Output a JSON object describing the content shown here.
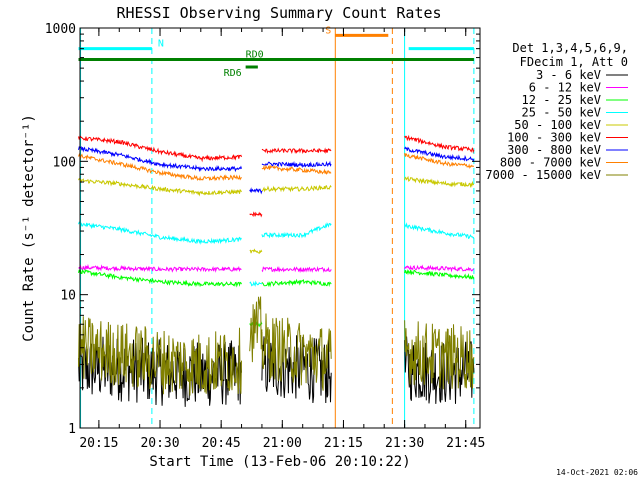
{
  "chart_data": {
    "type": "line",
    "title": "RHESSI Observing Summary Count Rates",
    "xlabel": "Start Time (13-Feb-06 20:10:22)",
    "ylabel": "Count Rate (s⁻¹ detector⁻¹)",
    "y_scale": "log",
    "ylim": [
      1,
      1000
    ],
    "xlim": [
      "20:10:22",
      "21:48:30"
    ],
    "x_ticks": [
      "20:15",
      "20:30",
      "20:45",
      "21:00",
      "21:15",
      "21:30",
      "21:45"
    ],
    "y_ticks": [
      "1",
      "10",
      "100",
      "1000"
    ],
    "footer_date": "14-Oct-2021 02:06",
    "legend": {
      "header": [
        "Det 1,3,4,5,6,9,",
        "FDecim 1, Att 0"
      ],
      "placement": "right"
    },
    "series": [
      {
        "name": "3 - 6 keV",
        "color": "#000000",
        "segments": [
          {
            "x": [
              "20:10",
              "20:20",
              "20:30",
              "20:40",
              "20:50"
            ],
            "y": [
              2.8,
              2.8,
              2.6,
              2.5,
              2.6
            ]
          },
          {
            "x": [
              "20:55",
              "21:05",
              "21:12"
            ],
            "y": [
              2.9,
              2.8,
              2.6
            ]
          },
          {
            "x": [
              "21:30",
              "21:40",
              "21:47"
            ],
            "y": [
              2.8,
              2.6,
              2.6
            ]
          }
        ]
      },
      {
        "name": "6 - 12 keV",
        "color": "#ff00ff",
        "segments": [
          {
            "x": [
              "20:10",
              "20:30",
              "20:50"
            ],
            "y": [
              16,
              15.5,
              15.5
            ]
          },
          {
            "x": [
              "20:55",
              "21:05",
              "21:12"
            ],
            "y": [
              15.5,
              15.5,
              15.5
            ]
          },
          {
            "x": [
              "21:30",
              "21:47"
            ],
            "y": [
              16,
              15.5
            ]
          }
        ]
      },
      {
        "name": "12 - 25 keV",
        "color": "#00ff00",
        "segments": [
          {
            "x": [
              "20:10",
              "20:20",
              "20:30",
              "20:40",
              "20:50"
            ],
            "y": [
              15,
              13.5,
              12.5,
              12,
              12
            ]
          },
          {
            "x": [
              "20:52",
              "20:55"
            ],
            "y": [
              6,
              6
            ]
          },
          {
            "x": [
              "20:55",
              "21:05",
              "21:12"
            ],
            "y": [
              12,
              12.5,
              12
            ]
          },
          {
            "x": [
              "21:30",
              "21:40",
              "21:47"
            ],
            "y": [
              15,
              14,
              13.5
            ]
          }
        ]
      },
      {
        "name": "25 - 50 keV",
        "color": "#00ffff",
        "segments": [
          {
            "x": [
              "20:10",
              "20:20",
              "20:30",
              "20:40",
              "20:50"
            ],
            "y": [
              34,
              31,
              27,
              25,
              26
            ]
          },
          {
            "x": [
              "20:52",
              "20:55"
            ],
            "y": [
              12,
              12
            ]
          },
          {
            "x": [
              "20:55",
              "21:05",
              "21:12"
            ],
            "y": [
              28,
              28,
              34
            ]
          },
          {
            "x": [
              "21:30",
              "21:40",
              "21:47"
            ],
            "y": [
              33,
              29,
              27
            ]
          }
        ]
      },
      {
        "name": "50 - 100 keV",
        "color": "#c8c800",
        "segments": [
          {
            "x": [
              "20:10",
              "20:20",
              "20:30",
              "20:40",
              "20:50"
            ],
            "y": [
              72,
              68,
              62,
              58,
              59
            ]
          },
          {
            "x": [
              "20:52",
              "20:55"
            ],
            "y": [
              21,
              21
            ]
          },
          {
            "x": [
              "20:55",
              "21:05",
              "21:12"
            ],
            "y": [
              62,
              62,
              64
            ]
          },
          {
            "x": [
              "21:30",
              "21:40",
              "21:47"
            ],
            "y": [
              74,
              68,
              67
            ]
          }
        ]
      },
      {
        "name": "100 - 300 keV",
        "color": "#ff0000",
        "segments": [
          {
            "x": [
              "20:10",
              "20:20",
              "20:30",
              "20:40",
              "20:50"
            ],
            "y": [
              150,
              140,
              118,
              105,
              108
            ]
          },
          {
            "x": [
              "20:52",
              "20:55"
            ],
            "y": [
              40,
              40
            ]
          },
          {
            "x": [
              "20:55",
              "21:05",
              "21:12"
            ],
            "y": [
              120,
              120,
              120
            ]
          },
          {
            "x": [
              "21:30",
              "21:40",
              "21:47"
            ],
            "y": [
              152,
              128,
              122
            ]
          }
        ]
      },
      {
        "name": "300 - 800 keV",
        "color": "#0000ff",
        "segments": [
          {
            "x": [
              "20:10",
              "20:20",
              "20:30",
              "20:40",
              "20:50"
            ],
            "y": [
              125,
              112,
              95,
              88,
              88
            ]
          },
          {
            "x": [
              "20:52",
              "20:55"
            ],
            "y": [
              60,
              60
            ]
          },
          {
            "x": [
              "20:55",
              "21:05",
              "21:12"
            ],
            "y": [
              96,
              94,
              95
            ]
          },
          {
            "x": [
              "21:30",
              "21:40",
              "21:47"
            ],
            "y": [
              124,
              108,
              104
            ]
          }
        ]
      },
      {
        "name": "800 - 7000 keV",
        "color": "#ff8000",
        "segments": [
          {
            "x": [
              "20:10",
              "20:20",
              "20:30",
              "20:40",
              "20:50"
            ],
            "y": [
              110,
              96,
              82,
              74,
              76
            ]
          },
          {
            "x": [
              "20:55",
              "21:05",
              "21:12"
            ],
            "y": [
              90,
              86,
              82
            ]
          },
          {
            "x": [
              "21:30",
              "21:40",
              "21:47"
            ],
            "y": [
              112,
              96,
              92
            ]
          }
        ]
      },
      {
        "name": "7000 - 15000 keV",
        "color": "#808000",
        "segments": [
          {
            "x": [
              "20:10",
              "20:20",
              "20:30",
              "20:40",
              "20:50"
            ],
            "y": [
              4,
              3.6,
              3.2,
              3.0,
              3.2
            ]
          },
          {
            "x": [
              "20:52",
              "20:55"
            ],
            "y": [
              5.5,
              5.5
            ]
          },
          {
            "x": [
              "20:55",
              "21:05",
              "21:12"
            ],
            "y": [
              4.2,
              3.6,
              3.3
            ]
          },
          {
            "x": [
              "21:30",
              "21:40",
              "21:47"
            ],
            "y": [
              3.8,
              3.4,
              3.4
            ]
          }
        ]
      }
    ],
    "flags": [
      {
        "label": "N",
        "color": "#00ffff",
        "x": [
          "20:10",
          "20:28"
        ],
        "y": 700
      },
      {
        "label": "N",
        "color": "#00ffff",
        "x": [
          "21:31",
          "21:47"
        ],
        "y": 700,
        "hide_label": true
      },
      {
        "label": "RD0",
        "color": "#008000",
        "x": [
          "20:10",
          "21:47"
        ],
        "y": 580
      },
      {
        "label": "RD6",
        "color": "#008000",
        "x": [
          "20:51",
          "20:54"
        ],
        "y": 510
      },
      {
        "label": "S",
        "color": "#ff8000",
        "x": [
          "21:13",
          "21:26"
        ],
        "y": 880
      }
    ],
    "vlines": [
      {
        "x": "20:10:30",
        "color": "#00ffff",
        "style": "solid"
      },
      {
        "x": "20:28",
        "color": "#00ffff",
        "style": "dashed"
      },
      {
        "x": "21:13",
        "color": "#ff8000",
        "style": "solid"
      },
      {
        "x": "21:27",
        "color": "#ff8000",
        "style": "dashed"
      },
      {
        "x": "21:30",
        "color": "#00ffff",
        "style": "solid"
      },
      {
        "x": "21:47",
        "color": "#00ffff",
        "style": "dashed"
      }
    ]
  }
}
